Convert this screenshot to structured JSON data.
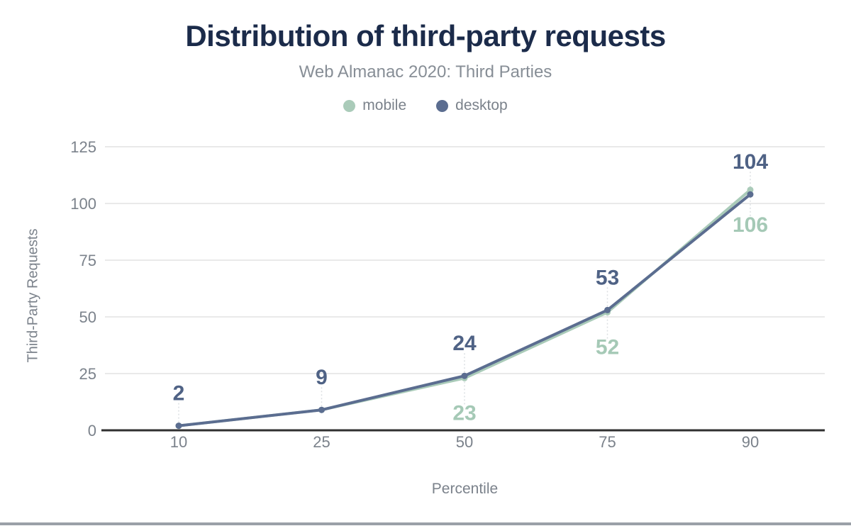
{
  "chart_data": {
    "type": "line",
    "title": "Distribution of third-party requests",
    "subtitle": "Web Almanac 2020: Third Parties",
    "xlabel": "Percentile",
    "ylabel": "Third-Party Requests",
    "x": [
      10,
      25,
      50,
      75,
      90
    ],
    "x_tick_labels": [
      "10",
      "25",
      "50",
      "75",
      "90"
    ],
    "yticks": [
      0,
      25,
      50,
      75,
      100,
      125
    ],
    "ylim": [
      0,
      125
    ],
    "grid": "horizontal-only",
    "legend_position": "top",
    "series": [
      {
        "name": "mobile",
        "color": "#aacbb9",
        "label_color": "#a5c9b6",
        "values": [
          2,
          9,
          23,
          52,
          106
        ],
        "data_labels": [
          "",
          "",
          "23",
          "52",
          "106"
        ],
        "label_placement": "below"
      },
      {
        "name": "desktop",
        "color": "#5b6d90",
        "label_color": "#4f6285",
        "values": [
          2,
          9,
          24,
          53,
          104
        ],
        "data_labels": [
          "2",
          "9",
          "24",
          "53",
          "104"
        ],
        "label_placement": "above"
      }
    ],
    "colors": {
      "title": "#1b2b4a",
      "subtitle": "#878e96",
      "tick_label": "#7b828b",
      "gridline": "#e9e9e9",
      "axis_line": "#2f2f2f",
      "leader_line": "#dcdfe2",
      "bottom_bar": "#9aa0a7"
    }
  }
}
